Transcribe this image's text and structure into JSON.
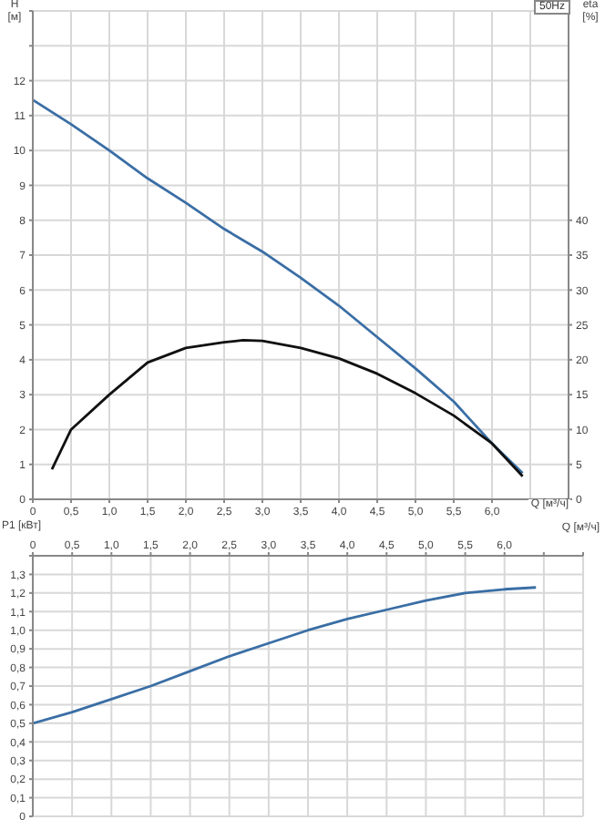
{
  "chart_data": [
    {
      "type": "line",
      "title": "50Hz",
      "xlabel": "Q [м³/ч]",
      "ylabel": "H [м]",
      "y2label": "eta [%]",
      "xlim": [
        0,
        7
      ],
      "xticks": [
        0,
        {
          "value": 0.5,
          "label": "0,5"
        },
        {
          "value": 1,
          "label": "1,0"
        },
        {
          "value": 1.5,
          "label": "1,5"
        },
        {
          "value": 2,
          "label": "2,0"
        },
        {
          "value": 2.5,
          "label": "2,5"
        },
        {
          "value": 3,
          "label": "3,0"
        },
        {
          "value": 3.5,
          "label": "3,5"
        },
        {
          "value": 4,
          "label": "4,0"
        },
        {
          "value": 4.5,
          "label": "4,5"
        },
        {
          "value": 5,
          "label": "5,0"
        },
        {
          "value": 5.5,
          "label": "5,5"
        },
        {
          "value": 6,
          "label": "6,0"
        },
        {
          "value": 6.5,
          "label": null
        },
        {
          "value": 7,
          "label": null
        }
      ],
      "ylim": [
        0,
        14
      ],
      "yticks": [
        0,
        1,
        2,
        3,
        4,
        5,
        6,
        7,
        8,
        9,
        10,
        11,
        12,
        {
          "value": 13,
          "label": null
        },
        {
          "value": 14,
          "label": null
        }
      ],
      "y2lim": [
        0,
        70
      ],
      "y2ticks": [
        0,
        5,
        10,
        15,
        20,
        25,
        30,
        35,
        40
      ],
      "grid": true,
      "marker": "none",
      "line_style": "solid",
      "series": [
        {
          "color": "#3a6ea5",
          "x": [
            0,
            0.5,
            1,
            1.5,
            2,
            2.5,
            3,
            3.5,
            4,
            4.5,
            5,
            5.5,
            6,
            6.4
          ],
          "values": [
            11.45,
            10.75,
            10.0,
            9.2,
            8.5,
            7.75,
            7.1,
            6.35,
            5.55,
            4.65,
            3.75,
            2.8,
            1.6,
            0.75
          ]
        },
        {
          "color": "#111111",
          "axis": "y2",
          "x": [
            0.25,
            0.5,
            1,
            1.5,
            2,
            2.5,
            2.75,
            3,
            3.5,
            4,
            4.5,
            5,
            5.5,
            6,
            6.4
          ],
          "values": [
            4.3,
            10,
            15,
            19.6,
            21.7,
            22.5,
            22.8,
            22.7,
            21.7,
            20.2,
            18,
            15.2,
            12,
            8,
            3.3
          ]
        }
      ]
    },
    {
      "type": "line",
      "xlabel": "Q [м³/ч]",
      "ylabel": "P1 [кВт]",
      "xlim": [
        0,
        7
      ],
      "xticks": [
        0,
        {
          "value": 0.5,
          "label": "0,5"
        },
        {
          "value": 1,
          "label": "1,0"
        },
        {
          "value": 1.5,
          "label": "1,5"
        },
        {
          "value": 2,
          "label": "2,0"
        },
        {
          "value": 2.5,
          "label": "2,5"
        },
        {
          "value": 3,
          "label": "3,0"
        },
        {
          "value": 3.5,
          "label": "3,5"
        },
        {
          "value": 4,
          "label": "4,0"
        },
        {
          "value": 4.5,
          "label": "4,5"
        },
        {
          "value": 5,
          "label": "5,0"
        },
        {
          "value": 5.5,
          "label": "5,5"
        },
        {
          "value": 6,
          "label": "6,0"
        },
        {
          "value": 6.5,
          "label": null
        },
        {
          "value": 7,
          "label": null
        }
      ],
      "ylim": [
        0,
        1.4
      ],
      "yticks": [
        0,
        {
          "value": 0.1,
          "label": "0,1"
        },
        {
          "value": 0.2,
          "label": "0,2"
        },
        {
          "value": 0.3,
          "label": "0,3"
        },
        {
          "value": 0.4,
          "label": "0,4"
        },
        {
          "value": 0.5,
          "label": "0,5"
        },
        {
          "value": 0.6,
          "label": "0,6"
        },
        {
          "value": 0.7,
          "label": "0,7"
        },
        {
          "value": 0.8,
          "label": "0,8"
        },
        {
          "value": 0.9,
          "label": "0,9"
        },
        {
          "value": 1.0,
          "label": "1,0"
        },
        {
          "value": 1.1,
          "label": "1,1"
        },
        {
          "value": 1.2,
          "label": "1,2"
        },
        {
          "value": 1.3,
          "label": "1,3"
        },
        {
          "value": 1.4,
          "label": null
        }
      ],
      "grid": true,
      "marker": "none",
      "line_style": "solid",
      "series": [
        {
          "color": "#3a6ea5",
          "x": [
            0,
            0.5,
            1,
            1.5,
            2,
            2.5,
            3,
            3.5,
            4,
            4.5,
            5,
            5.5,
            6,
            6.4
          ],
          "values": [
            0.5,
            0.56,
            0.63,
            0.7,
            0.78,
            0.86,
            0.93,
            1.0,
            1.06,
            1.11,
            1.16,
            1.2,
            1.22,
            1.23
          ]
        }
      ]
    }
  ]
}
